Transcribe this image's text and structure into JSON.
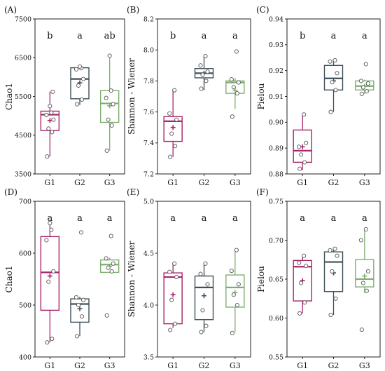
{
  "colors": {
    "G1": "#a8246b",
    "G2": "#3d4f58",
    "G3": "#7fae6e"
  },
  "chart_data": [
    {
      "type": "boxplot",
      "panel": "(A)",
      "ylabel": "Chao1",
      "categories": [
        "G1",
        "G2",
        "G3"
      ],
      "ylim": [
        3500,
        7500
      ],
      "yticks": [
        "3500",
        "4500",
        "5500",
        "6500",
        "7500"
      ],
      "sig": [
        "b",
        "a",
        "ab"
      ],
      "boxes": [
        {
          "min": 3950,
          "q1": 4620,
          "median": 5030,
          "q3": 5120,
          "max": 5620,
          "mean": 4880,
          "points": [
            3950,
            4580,
            4670,
            4900,
            5020,
            5080,
            5250,
            5620
          ]
        },
        {
          "min": 5280,
          "q1": 5440,
          "median": 5950,
          "q3": 6240,
          "max": 6270,
          "mean": 5850,
          "points": [
            5300,
            5420,
            5780,
            5950,
            6200,
            6230,
            6270
          ]
        },
        {
          "min": 4100,
          "q1": 4830,
          "median": 5320,
          "q3": 5650,
          "max": 6560,
          "mean": 5260,
          "points": [
            4100,
            4750,
            4900,
            5300,
            5460,
            5650,
            6550
          ]
        }
      ]
    },
    {
      "type": "boxplot",
      "panel": "(B)",
      "ylabel": "Shannon - Wiener",
      "categories": [
        "G1",
        "G2",
        "G3"
      ],
      "ylim": [
        7.2,
        8.2
      ],
      "yticks": [
        "7.2",
        "7.4",
        "7.6",
        "7.8",
        "8.0",
        "8.2"
      ],
      "sig": [
        "b",
        "a",
        "a"
      ],
      "boxes": [
        {
          "min": 7.31,
          "q1": 7.41,
          "median": 7.54,
          "q3": 7.57,
          "max": 7.74,
          "mean": 7.5,
          "points": [
            7.31,
            7.38,
            7.46,
            7.55,
            7.59,
            7.74
          ]
        },
        {
          "min": 7.74,
          "q1": 7.82,
          "median": 7.85,
          "q3": 7.88,
          "max": 7.96,
          "mean": 7.85,
          "points": [
            7.75,
            7.8,
            7.84,
            7.86,
            7.9,
            7.96
          ]
        },
        {
          "min": 7.62,
          "q1": 7.72,
          "median": 7.79,
          "q3": 7.8,
          "max": 7.82,
          "mean": 7.74,
          "points": [
            7.57,
            7.72,
            7.76,
            7.79,
            7.81,
            7.99
          ]
        }
      ]
    },
    {
      "type": "boxplot",
      "panel": "(C)",
      "ylabel": "Pielou",
      "categories": [
        "G1",
        "G2",
        "G3"
      ],
      "ylim": [
        0.88,
        0.94
      ],
      "yticks": [
        "0.88",
        "0.89",
        "0.90",
        "0.91",
        "0.92",
        "0.93",
        "0.94"
      ],
      "sig": [
        "b",
        "a",
        "a"
      ],
      "boxes": [
        {
          "min": 0.8815,
          "q1": 0.8845,
          "median": 0.889,
          "q3": 0.897,
          "max": 0.903,
          "mean": 0.8905,
          "points": [
            0.882,
            0.8845,
            0.8875,
            0.892,
            0.8905,
            0.903
          ]
        },
        {
          "min": 0.904,
          "q1": 0.9125,
          "median": 0.917,
          "q3": 0.922,
          "max": 0.924,
          "mean": 0.916,
          "points": [
            0.904,
            0.9125,
            0.9155,
            0.919,
            0.9235,
            0.924
          ]
        },
        {
          "min": 0.911,
          "q1": 0.9125,
          "median": 0.914,
          "q3": 0.916,
          "max": 0.9165,
          "mean": 0.914,
          "points": [
            0.911,
            0.912,
            0.9135,
            0.915,
            0.916,
            0.9225
          ]
        }
      ]
    },
    {
      "type": "boxplot",
      "panel": "(D)",
      "ylabel": "Chao1",
      "categories": [
        "G1",
        "G2",
        "G3"
      ],
      "ylim": [
        400,
        700
      ],
      "yticks": [
        "400",
        "500",
        "600",
        "700"
      ],
      "sig": [
        "a",
        "a",
        "a"
      ],
      "boxes": [
        {
          "min": 428,
          "q1": 490,
          "median": 563,
          "q3": 632,
          "max": 658,
          "mean": 556,
          "points": [
            428,
            435,
            545,
            565,
            625,
            645,
            658
          ]
        },
        {
          "min": 440,
          "q1": 467,
          "median": 502,
          "q3": 512,
          "max": 516,
          "mean": 493,
          "points": [
            440,
            478,
            500,
            510,
            515,
            640
          ]
        },
        {
          "min": 563,
          "q1": 563,
          "median": 578,
          "q3": 587,
          "max": 591,
          "mean": 574,
          "points": [
            480,
            565,
            572,
            580,
            590,
            633
          ]
        }
      ]
    },
    {
      "type": "boxplot",
      "panel": "(E)",
      "ylabel": "Shannon - Wiener",
      "categories": [
        "G1",
        "G2",
        "G3"
      ],
      "ylim": [
        3.5,
        5.0
      ],
      "yticks": [
        "3.5",
        "4.0",
        "4.5",
        "5.0"
      ],
      "sig": [
        "a",
        "a",
        "a"
      ],
      "boxes": [
        {
          "min": 3.78,
          "q1": 3.82,
          "median": 4.27,
          "q3": 4.31,
          "max": 4.41,
          "mean": 4.1,
          "points": [
            3.76,
            3.82,
            4.05,
            4.27,
            4.32,
            4.4
          ]
        },
        {
          "min": 3.74,
          "q1": 3.86,
          "median": 4.17,
          "q3": 4.28,
          "max": 4.41,
          "mean": 4.09,
          "points": [
            3.74,
            3.8,
            3.95,
            4.2,
            4.3,
            4.4
          ]
        },
        {
          "min": 3.74,
          "q1": 3.98,
          "median": 4.17,
          "q3": 4.29,
          "max": 4.52,
          "mean": 4.12,
          "points": [
            3.73,
            4.0,
            4.1,
            4.2,
            4.33,
            4.53
          ]
        }
      ]
    },
    {
      "type": "boxplot",
      "panel": "(F)",
      "ylabel": "Pielou",
      "categories": [
        "G1",
        "G2",
        "G3"
      ],
      "ylim": [
        0.55,
        0.75
      ],
      "yticks": [
        "0.55",
        "0.60",
        "0.65",
        "0.70",
        "0.75"
      ],
      "sig": [
        "a",
        "a",
        "a"
      ],
      "boxes": [
        {
          "min": 0.606,
          "q1": 0.622,
          "median": 0.666,
          "q3": 0.674,
          "max": 0.681,
          "mean": 0.648,
          "points": [
            0.606,
            0.62,
            0.645,
            0.667,
            0.671,
            0.68
          ]
        },
        {
          "min": 0.604,
          "q1": 0.634,
          "median": 0.672,
          "q3": 0.685,
          "max": 0.689,
          "mean": 0.658,
          "points": [
            0.604,
            0.625,
            0.66,
            0.68,
            0.687,
            0.689
          ]
        },
        {
          "min": 0.632,
          "q1": 0.64,
          "median": 0.65,
          "q3": 0.675,
          "max": 0.715,
          "mean": 0.654,
          "points": [
            0.585,
            0.635,
            0.645,
            0.66,
            0.7,
            0.714
          ]
        }
      ]
    }
  ]
}
